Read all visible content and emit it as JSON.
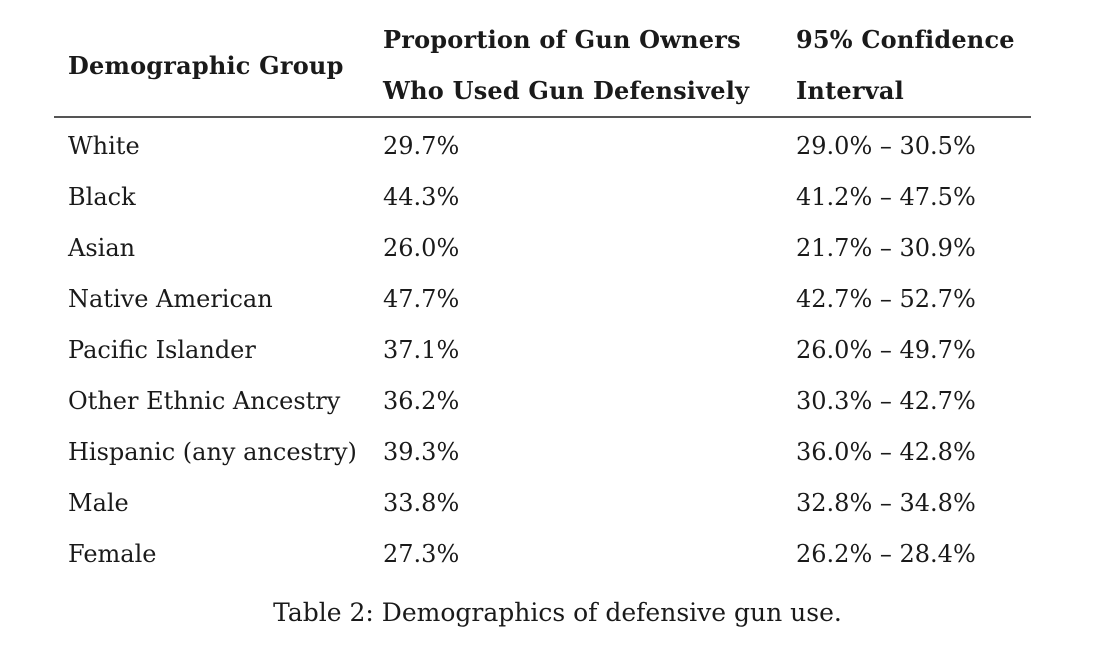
{
  "table": {
    "headers": {
      "group": "Demographic Group",
      "proportion_line1": "Proportion of Gun Owners",
      "proportion_line2": "Who Used Gun Defensively",
      "ci_line1": "95% Confidence",
      "ci_line2": "Interval"
    },
    "rows": [
      {
        "group": "White",
        "proportion": "29.7%",
        "ci": "29.0% – 30.5%"
      },
      {
        "group": "Black",
        "proportion": "44.3%",
        "ci": "41.2% – 47.5%"
      },
      {
        "group": "Asian",
        "proportion": "26.0%",
        "ci": "21.7% – 30.9%"
      },
      {
        "group": "Native American",
        "proportion": "47.7%",
        "ci": "42.7% – 52.7%"
      },
      {
        "group": "Pacific Islander",
        "proportion": "37.1%",
        "ci": "26.0% – 49.7%"
      },
      {
        "group": "Other Ethnic Ancestry",
        "proportion": "36.2%",
        "ci": "30.3% – 42.7%"
      },
      {
        "group": "Hispanic (any ancestry)",
        "proportion": "39.3%",
        "ci": "36.0% – 42.8%"
      },
      {
        "group": "Male",
        "proportion": "33.8%",
        "ci": "32.8% – 34.8%"
      },
      {
        "group": "Female",
        "proportion": "27.3%",
        "ci": "26.2% – 28.4%"
      }
    ]
  },
  "caption": "Table 2: Demographics of defensive gun use."
}
